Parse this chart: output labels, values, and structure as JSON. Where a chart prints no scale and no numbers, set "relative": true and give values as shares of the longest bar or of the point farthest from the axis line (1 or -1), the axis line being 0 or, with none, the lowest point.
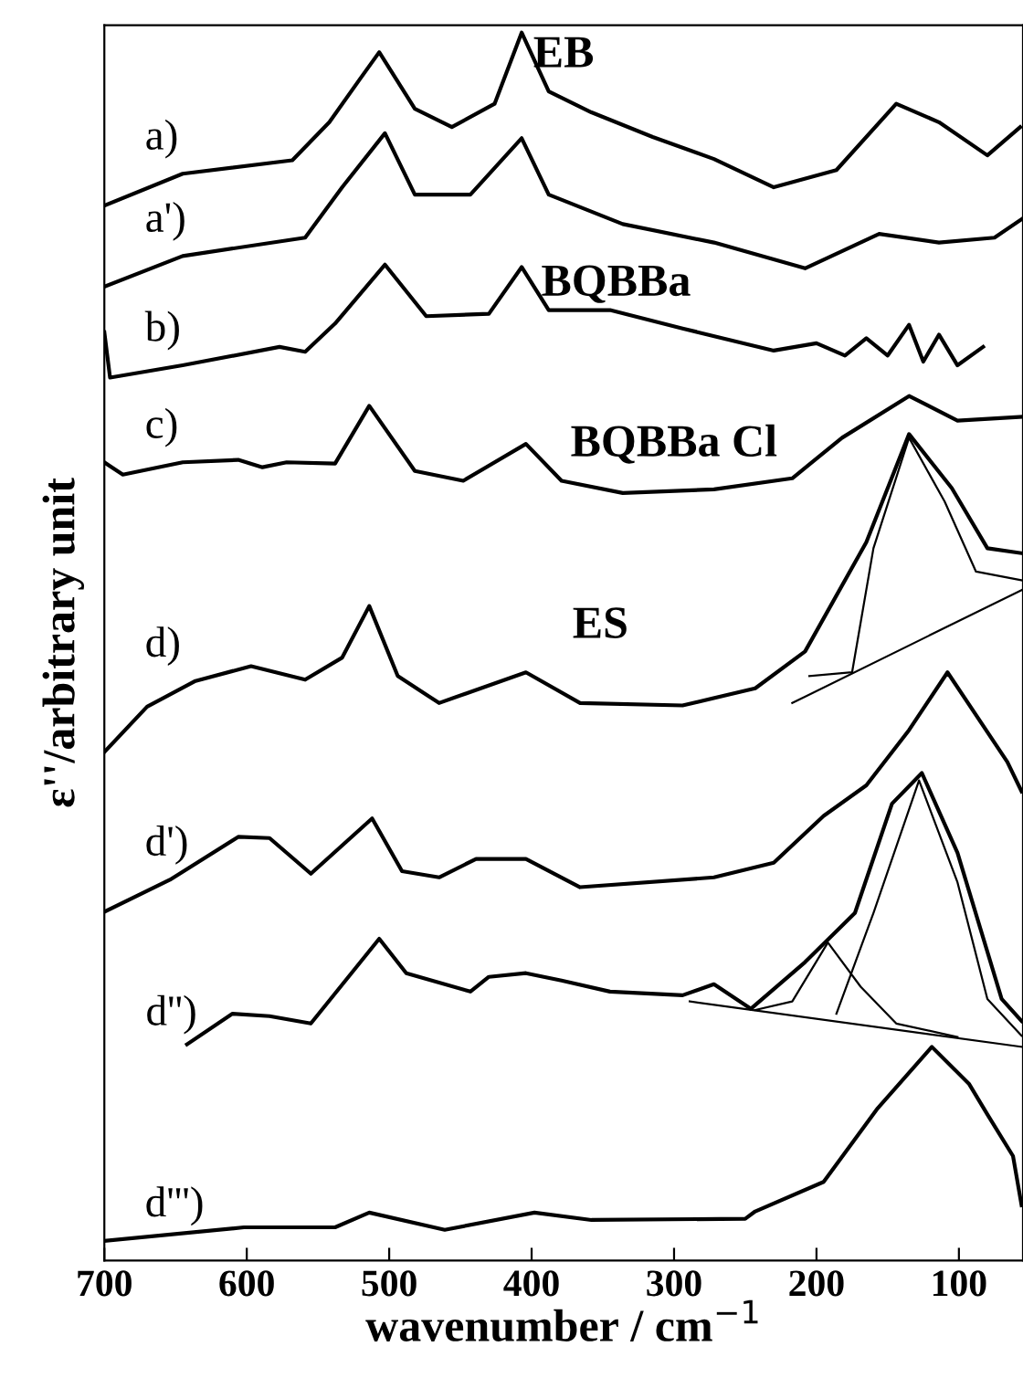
{
  "chart_data": {
    "type": "line",
    "relative": true,
    "xlabel": "wavenumber / cm$^{−1}$",
    "ylabel": "ε''/arbitrary unit",
    "xlim": [
      700,
      55
    ],
    "xticks": [
      700,
      600,
      500,
      400,
      300,
      200,
      100
    ],
    "grid": false,
    "marker": "none",
    "line_style": "solid",
    "tick_labels": "x",
    "annotations": [
      "EB",
      "BQBBa",
      "BQBBa Cl",
      "ES"
    ],
    "series": [
      {
        "name": "a)",
        "color": "#000000",
        "x": [
          700,
          645,
          568,
          542,
          520,
          507,
          482,
          456,
          426,
          407,
          388,
          358,
          315,
          272,
          230,
          186,
          144,
          114,
          80,
          57
        ],
        "values": [
          0.859,
          0.885,
          0.896,
          0.927,
          0.963,
          0.984,
          0.938,
          0.923,
          0.942,
          1.0,
          0.952,
          0.935,
          0.915,
          0.897,
          0.874,
          0.888,
          0.942,
          0.927,
          0.9,
          0.923
        ]
      },
      {
        "name": "a')",
        "color": "#000000",
        "x": [
          700,
          645,
          559,
          533,
          503,
          482,
          443,
          407,
          388,
          336,
          272,
          208,
          156,
          114,
          75,
          56
        ],
        "values": [
          0.793,
          0.818,
          0.833,
          0.874,
          0.918,
          0.868,
          0.868,
          0.914,
          0.868,
          0.844,
          0.829,
          0.808,
          0.836,
          0.829,
          0.833,
          0.848
        ]
      },
      {
        "name": "b)",
        "color": "#000000",
        "x": [
          700,
          696,
          645,
          577,
          559,
          538,
          503,
          474,
          430,
          407,
          388,
          345,
          294,
          230,
          200,
          180,
          165,
          150,
          135,
          125,
          114,
          101,
          83
        ],
        "values": [
          0.756,
          0.719,
          0.729,
          0.744,
          0.74,
          0.763,
          0.811,
          0.769,
          0.771,
          0.809,
          0.774,
          0.774,
          0.759,
          0.741,
          0.747,
          0.737,
          0.751,
          0.737,
          0.762,
          0.732,
          0.754,
          0.729,
          0.744
        ]
      },
      {
        "name": "c)",
        "color": "#000000",
        "x": [
          700,
          687,
          645,
          606,
          589,
          572,
          538,
          514,
          482,
          448,
          404,
          379,
          336,
          272,
          217,
          182,
          135,
          101,
          56
        ],
        "values": [
          0.65,
          0.64,
          0.65,
          0.652,
          0.646,
          0.65,
          0.649,
          0.696,
          0.643,
          0.635,
          0.665,
          0.635,
          0.625,
          0.628,
          0.637,
          0.67,
          0.704,
          0.684,
          0.687
        ]
      },
      {
        "name": "d)",
        "color": "#000000",
        "x": [
          700,
          670,
          636,
          597,
          559,
          533,
          514,
          494,
          465,
          404,
          366,
          294,
          243,
          208,
          165,
          135,
          105,
          80,
          56
        ],
        "values": [
          0.414,
          0.451,
          0.472,
          0.484,
          0.473,
          0.491,
          0.533,
          0.476,
          0.454,
          0.479,
          0.454,
          0.452,
          0.466,
          0.496,
          0.585,
          0.673,
          0.629,
          0.58,
          0.576
        ]
      },
      {
        "color": "#000000",
        "x": [
          205,
          175,
          160,
          135,
          110,
          88,
          56
        ],
        "values": [
          0.476,
          0.479,
          0.58,
          0.67,
          0.618,
          0.561,
          0.554
        ]
      },
      {
        "color": "#000000",
        "x": [
          217,
          56
        ],
        "values": [
          0.454,
          0.546
        ]
      },
      {
        "name": "d')",
        "color": "#000000",
        "x": [
          700,
          654,
          606,
          584,
          555,
          512,
          491,
          465,
          439,
          404,
          366,
          272,
          230,
          195,
          165,
          135,
          108,
          66,
          56
        ],
        "values": [
          0.284,
          0.31,
          0.345,
          0.344,
          0.315,
          0.36,
          0.317,
          0.312,
          0.327,
          0.327,
          0.304,
          0.312,
          0.324,
          0.362,
          0.387,
          0.432,
          0.479,
          0.406,
          0.382
        ]
      },
      {
        "name": "d'')",
        "color": "#000000",
        "x": [
          642,
          610,
          584,
          555,
          507,
          488,
          443,
          430,
          404,
          379,
          345,
          294,
          272,
          246,
          208,
          173,
          147,
          126,
          101,
          70,
          56
        ],
        "values": [
          0.176,
          0.201,
          0.199,
          0.193,
          0.262,
          0.234,
          0.219,
          0.231,
          0.234,
          0.228,
          0.219,
          0.216,
          0.225,
          0.205,
          0.243,
          0.283,
          0.372,
          0.397,
          0.332,
          0.213,
          0.195
        ]
      },
      {
        "color": "#000000",
        "x": [
          243,
          217,
          192,
          169,
          144,
          101
        ],
        "values": [
          0.204,
          0.211,
          0.259,
          0.223,
          0.193,
          0.182
        ]
      },
      {
        "color": "#000000",
        "x": [
          186,
          160,
          128,
          101,
          80,
          56
        ],
        "values": [
          0.201,
          0.283,
          0.391,
          0.308,
          0.213,
          0.183
        ]
      },
      {
        "color": "#000000",
        "x": [
          289,
          56
        ],
        "values": [
          0.211,
          0.174
        ]
      },
      {
        "name": "d''')",
        "color": "#000000",
        "x": [
          700,
          602,
          538,
          514,
          461,
          398,
          358,
          250,
          243,
          195,
          157,
          119,
          93,
          80,
          62,
          56
        ],
        "values": [
          0.016,
          0.027,
          0.027,
          0.039,
          0.025,
          0.039,
          0.033,
          0.034,
          0.04,
          0.064,
          0.124,
          0.174,
          0.144,
          0.119,
          0.085,
          0.045
        ]
      }
    ]
  }
}
